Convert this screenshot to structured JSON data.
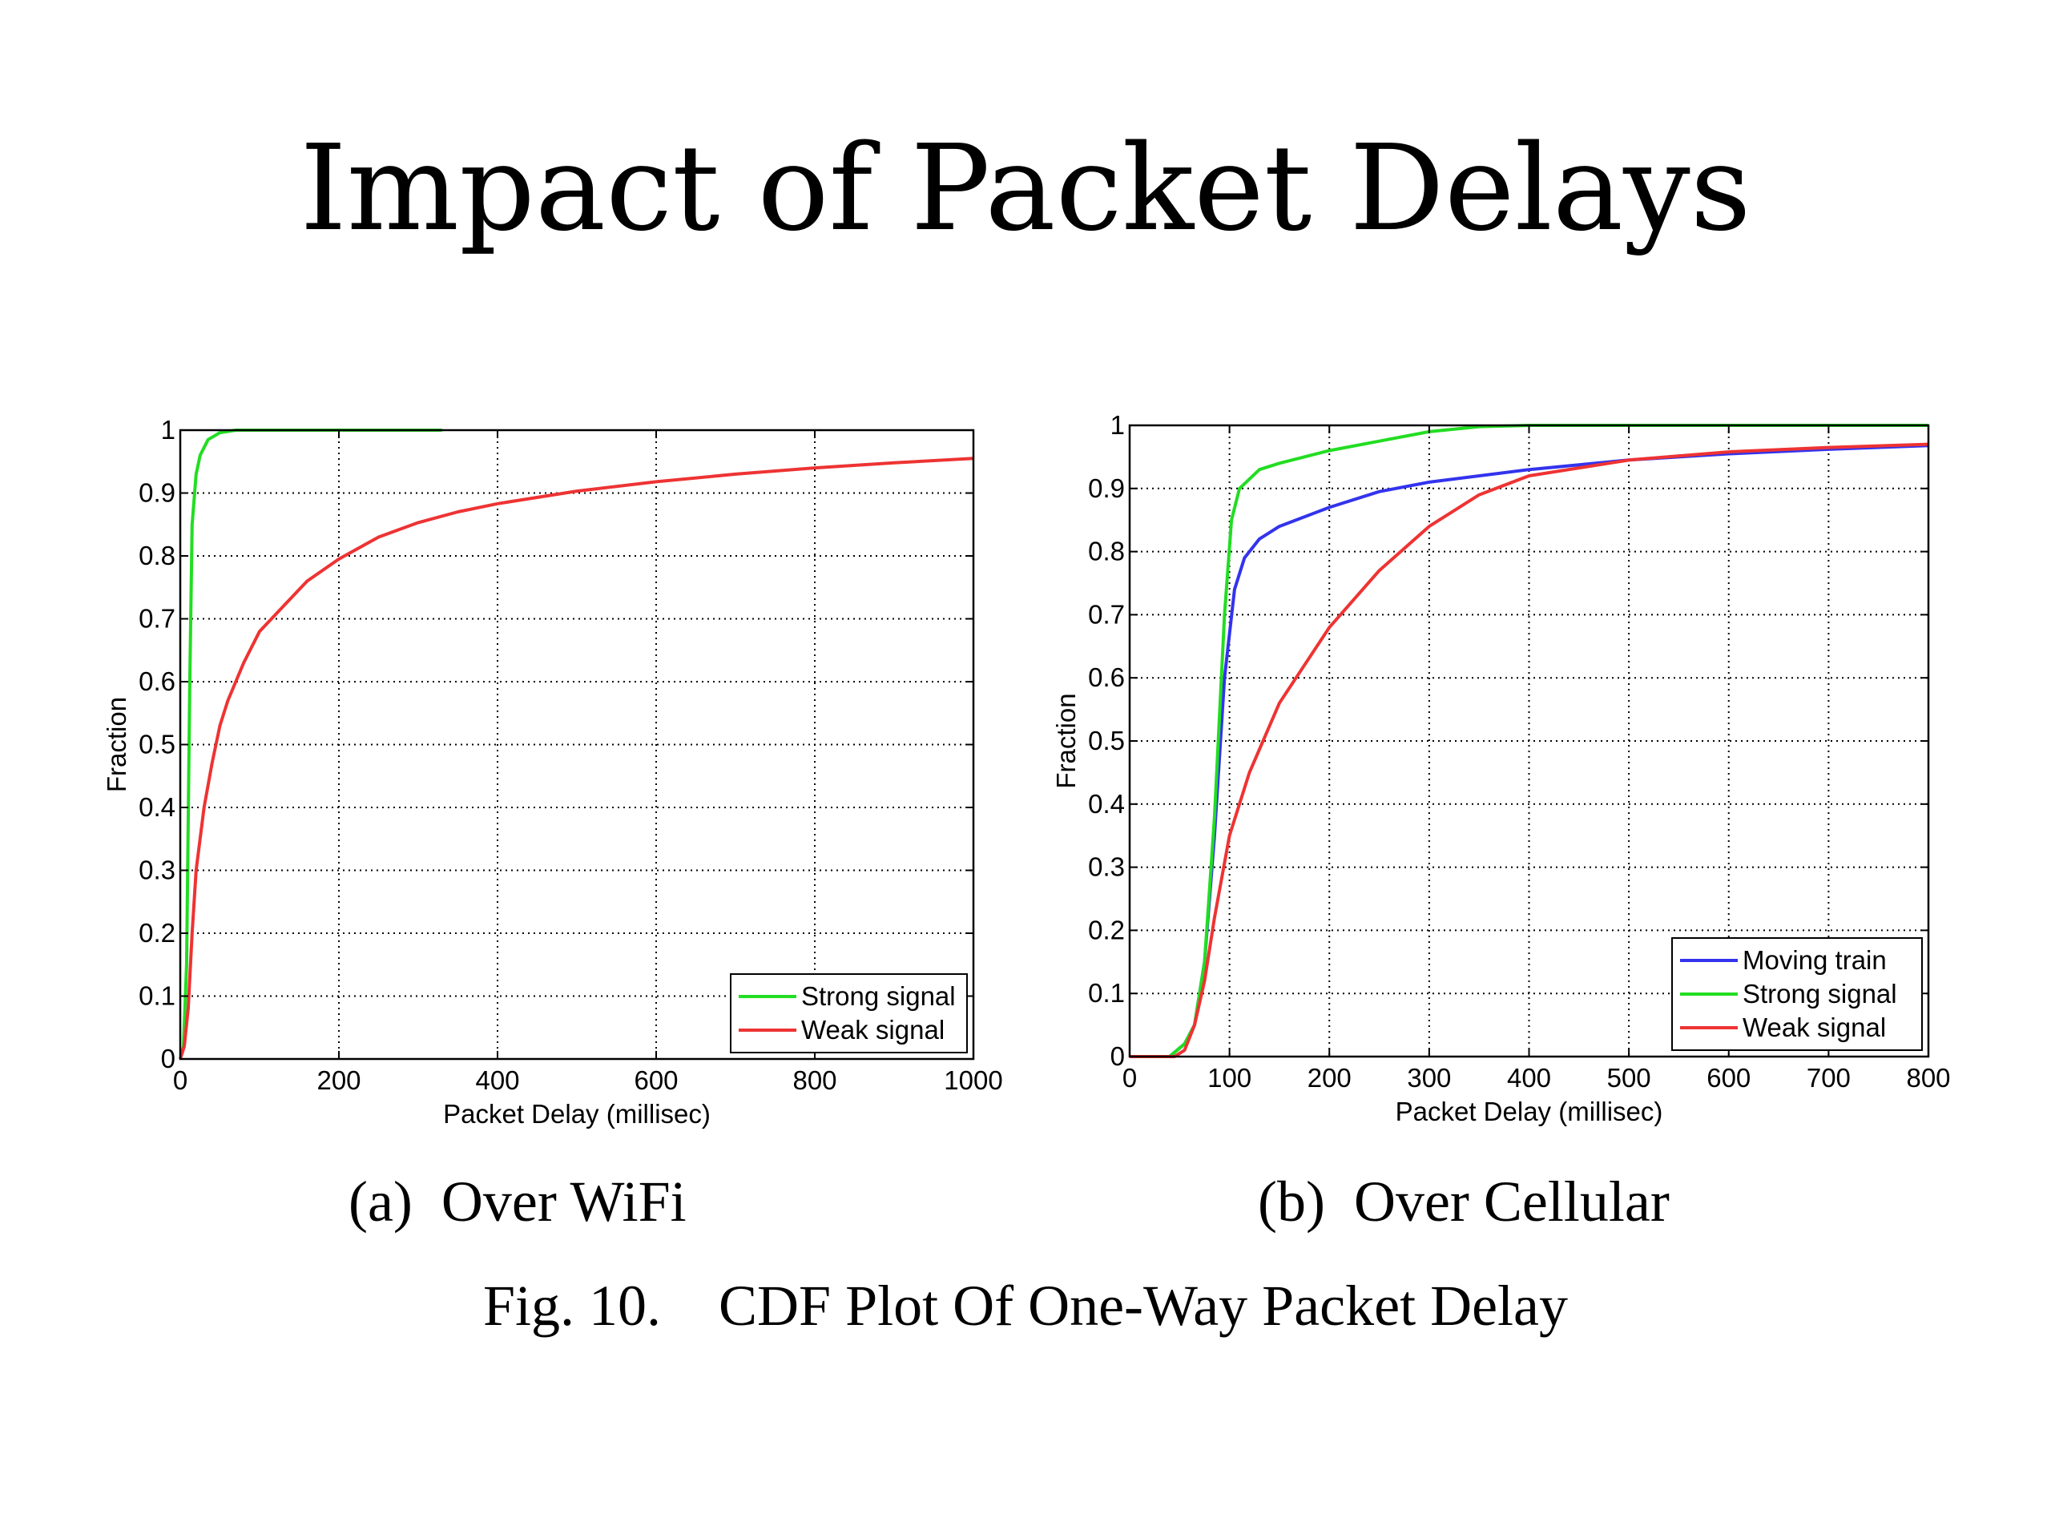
{
  "slide": {
    "title": "Impact of Packet Delays",
    "subcaption_a": "(a)  Over WiFi",
    "subcaption_b": "(b)  Over Cellular",
    "figure_caption": "Fig. 10.    CDF Plot Of One-Way Packet Delay"
  },
  "chart_data": [
    {
      "id": "wifi",
      "type": "line",
      "xlabel": "Packet Delay (millisec)",
      "ylabel": "Fraction",
      "xlim": [
        0,
        1000
      ],
      "ylim": [
        0,
        1
      ],
      "xticks": [
        0,
        200,
        400,
        600,
        800,
        1000
      ],
      "yticks": [
        0,
        0.1,
        0.2,
        0.3,
        0.4,
        0.5,
        0.6,
        0.7,
        0.8,
        0.9,
        1
      ],
      "grid": true,
      "legend_position": "bottom-right",
      "series": [
        {
          "name": "Strong signal",
          "color": "#22dd22",
          "points": [
            [
              0,
              0
            ],
            [
              4,
              0.02
            ],
            [
              8,
              0.15
            ],
            [
              12,
              0.6
            ],
            [
              15,
              0.85
            ],
            [
              20,
              0.93
            ],
            [
              25,
              0.96
            ],
            [
              35,
              0.985
            ],
            [
              50,
              0.996
            ],
            [
              70,
              1.0
            ],
            [
              100,
              1.0
            ],
            [
              200,
              1.0
            ],
            [
              330,
              1.0
            ]
          ]
        },
        {
          "name": "Weak signal",
          "color": "#ee3333",
          "points": [
            [
              0,
              0
            ],
            [
              5,
              0.02
            ],
            [
              10,
              0.08
            ],
            [
              15,
              0.2
            ],
            [
              20,
              0.3
            ],
            [
              30,
              0.4
            ],
            [
              40,
              0.47
            ],
            [
              50,
              0.53
            ],
            [
              60,
              0.57
            ],
            [
              80,
              0.63
            ],
            [
              100,
              0.68
            ],
            [
              130,
              0.72
            ],
            [
              160,
              0.76
            ],
            [
              200,
              0.795
            ],
            [
              250,
              0.83
            ],
            [
              300,
              0.853
            ],
            [
              350,
              0.87
            ],
            [
              400,
              0.883
            ],
            [
              500,
              0.903
            ],
            [
              600,
              0.918
            ],
            [
              700,
              0.93
            ],
            [
              800,
              0.94
            ],
            [
              900,
              0.948
            ],
            [
              1000,
              0.955
            ]
          ]
        }
      ]
    },
    {
      "id": "cellular",
      "type": "line",
      "xlabel": "Packet Delay (millisec)",
      "ylabel": "Fraction",
      "xlim": [
        0,
        800
      ],
      "ylim": [
        0,
        1
      ],
      "xticks": [
        0,
        100,
        200,
        300,
        400,
        500,
        600,
        700,
        800
      ],
      "yticks": [
        0,
        0.1,
        0.2,
        0.3,
        0.4,
        0.5,
        0.6,
        0.7,
        0.8,
        0.9,
        1
      ],
      "grid": true,
      "legend_position": "bottom-right",
      "series": [
        {
          "name": "Moving train",
          "color": "#3333ee",
          "points": [
            [
              0,
              0
            ],
            [
              40,
              0
            ],
            [
              55,
              0.02
            ],
            [
              65,
              0.05
            ],
            [
              75,
              0.15
            ],
            [
              85,
              0.35
            ],
            [
              95,
              0.6
            ],
            [
              105,
              0.74
            ],
            [
              115,
              0.79
            ],
            [
              130,
              0.82
            ],
            [
              150,
              0.84
            ],
            [
              200,
              0.87
            ],
            [
              250,
              0.895
            ],
            [
              300,
              0.91
            ],
            [
              400,
              0.93
            ],
            [
              500,
              0.945
            ],
            [
              600,
              0.955
            ],
            [
              700,
              0.962
            ],
            [
              800,
              0.968
            ]
          ]
        },
        {
          "name": "Strong signal",
          "color": "#22dd22",
          "points": [
            [
              0,
              0
            ],
            [
              40,
              0
            ],
            [
              55,
              0.02
            ],
            [
              65,
              0.05
            ],
            [
              75,
              0.15
            ],
            [
              85,
              0.38
            ],
            [
              95,
              0.7
            ],
            [
              102,
              0.85
            ],
            [
              110,
              0.9
            ],
            [
              130,
              0.93
            ],
            [
              150,
              0.94
            ],
            [
              200,
              0.96
            ],
            [
              250,
              0.975
            ],
            [
              300,
              0.99
            ],
            [
              350,
              0.998
            ],
            [
              400,
              1.0
            ],
            [
              800,
              1.0
            ]
          ]
        },
        {
          "name": "Weak signal",
          "color": "#ee3333",
          "points": [
            [
              0,
              0
            ],
            [
              45,
              0
            ],
            [
              55,
              0.01
            ],
            [
              65,
              0.05
            ],
            [
              75,
              0.12
            ],
            [
              85,
              0.22
            ],
            [
              100,
              0.35
            ],
            [
              120,
              0.45
            ],
            [
              150,
              0.56
            ],
            [
              200,
              0.68
            ],
            [
              250,
              0.77
            ],
            [
              300,
              0.84
            ],
            [
              350,
              0.89
            ],
            [
              400,
              0.92
            ],
            [
              500,
              0.945
            ],
            [
              600,
              0.958
            ],
            [
              700,
              0.965
            ],
            [
              800,
              0.97
            ]
          ]
        }
      ]
    }
  ]
}
